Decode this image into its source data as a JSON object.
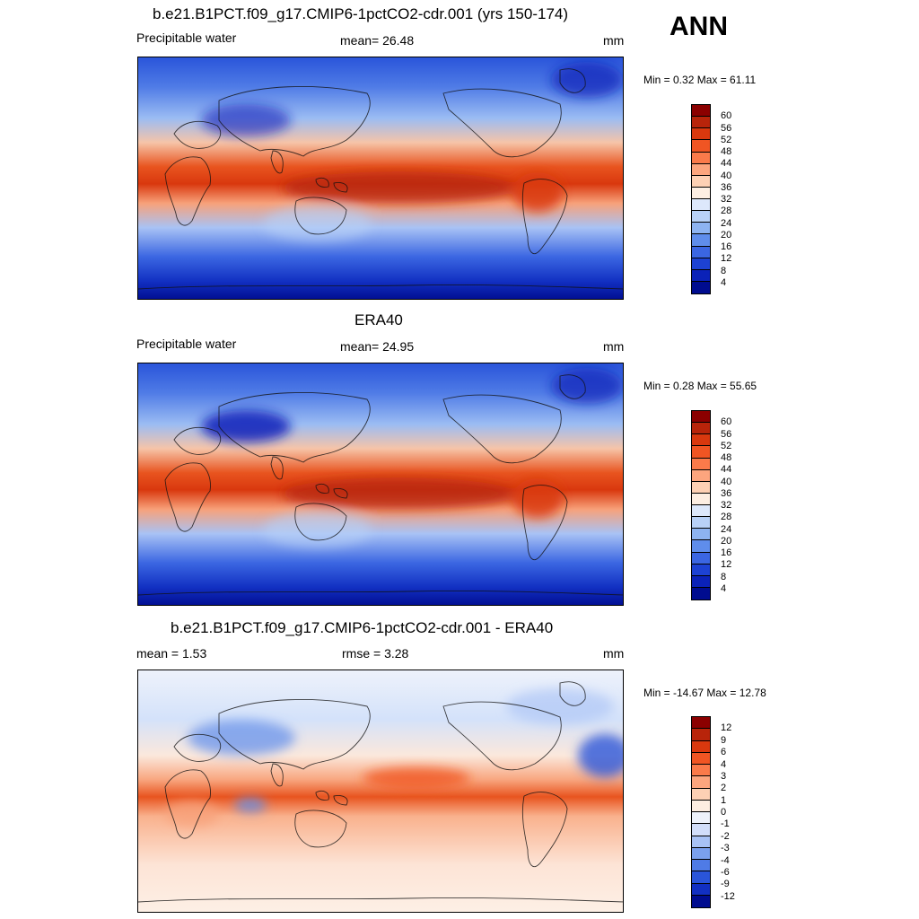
{
  "season": "ANN",
  "panels": [
    {
      "title": "b.e21.B1PCT.f09_g17.CMIP6-1pctCO2-cdr.001 (yrs 150-174)",
      "left_label": "Precipitable water",
      "center_label": "mean=  26.48",
      "units": "mm",
      "minmax": "Min =   0.32 Max =  61.11",
      "kind": "model",
      "colorbar": {
        "labels": [
          "60",
          "56",
          "52",
          "48",
          "44",
          "40",
          "36",
          "32",
          "28",
          "24",
          "20",
          "16",
          "12",
          "8",
          "4"
        ],
        "colors": [
          "#8b0000",
          "#b8240a",
          "#d9380e",
          "#f05523",
          "#fa7a4a",
          "#fca57e",
          "#fdd0b4",
          "#fdeee2",
          "#dde8fb",
          "#b8d1f7",
          "#8db3f1",
          "#5f8deb",
          "#3b66e2",
          "#1d42d3",
          "#0b22b8",
          "#000c8f"
        ]
      }
    },
    {
      "title": "ERA40",
      "left_label": "Precipitable water",
      "center_label": "mean=  24.95",
      "units": "mm",
      "minmax": "Min =   0.28 Max =  55.65",
      "kind": "obs",
      "colorbar": {
        "labels": [
          "60",
          "56",
          "52",
          "48",
          "44",
          "40",
          "36",
          "32",
          "28",
          "24",
          "20",
          "16",
          "12",
          "8",
          "4"
        ],
        "colors": [
          "#8b0000",
          "#b8240a",
          "#d9380e",
          "#f05523",
          "#fa7a4a",
          "#fca57e",
          "#fdd0b4",
          "#fdeee2",
          "#dde8fb",
          "#b8d1f7",
          "#8db3f1",
          "#5f8deb",
          "#3b66e2",
          "#1d42d3",
          "#0b22b8",
          "#000c8f"
        ]
      }
    },
    {
      "title": "b.e21.B1PCT.f09_g17.CMIP6-1pctCO2-cdr.001 - ERA40",
      "left_label": "mean =   1.53",
      "center_label": "rmse =   3.28",
      "units": "mm",
      "minmax": "Min = -14.67 Max =  12.78",
      "kind": "diff",
      "colorbar": {
        "labels": [
          "12",
          "9",
          "6",
          "4",
          "3",
          "2",
          "1",
          "0",
          "-1",
          "-2",
          "-3",
          "-4",
          "-6",
          "-9",
          "-12"
        ],
        "colors": [
          "#8b0000",
          "#b8240a",
          "#d9380e",
          "#f05523",
          "#fa7a4a",
          "#fca57e",
          "#fdd0b4",
          "#fdeee2",
          "#eef2fb",
          "#d2defa",
          "#a8c2f5",
          "#7aa0ee",
          "#4f7be6",
          "#2a55da",
          "#1230c2",
          "#000c8f"
        ]
      }
    }
  ]
}
